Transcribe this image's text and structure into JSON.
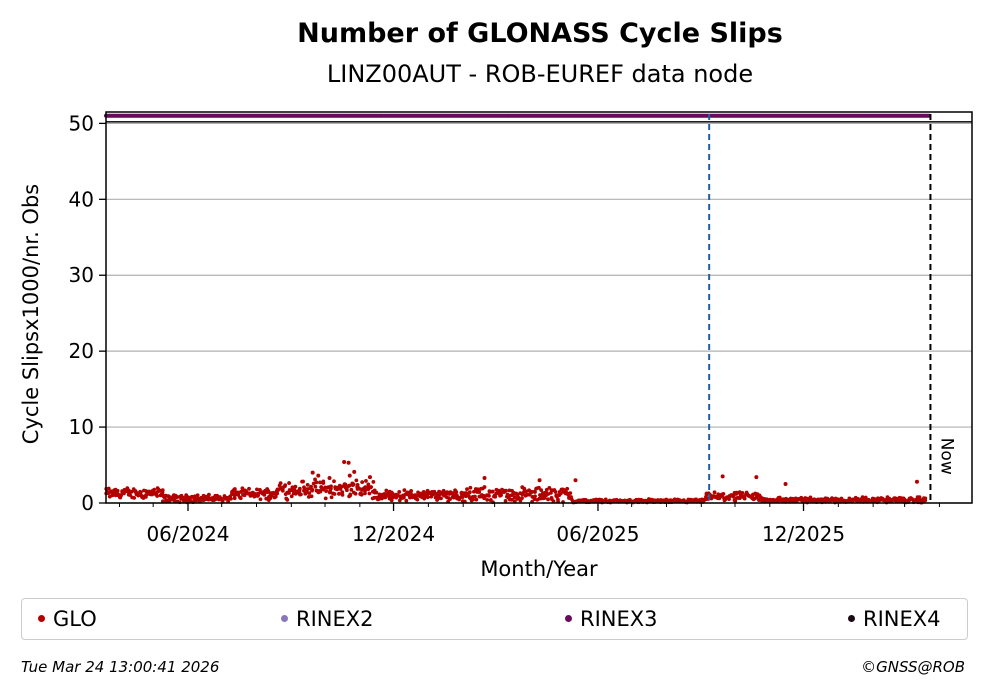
{
  "chart_data": {
    "type": "scatter",
    "title": "Number of GLONASS Cycle Slips",
    "subtitle": "LINZ00AUT - ROB-EUREF data node",
    "xlabel": "Month/Year",
    "ylabel": "Cycle Slipsx1000/nr. Obs",
    "x_range": [
      "2024-03-20",
      "2026-04-30"
    ],
    "ylim": [
      0,
      51.5
    ],
    "y_ticks": [
      0,
      10,
      20,
      30,
      40,
      50
    ],
    "x_ticks": [
      {
        "date": "2024-06-01",
        "label": "06/2024"
      },
      {
        "date": "2024-12-01",
        "label": "12/2024"
      },
      {
        "date": "2025-06-01",
        "label": "06/2025"
      },
      {
        "date": "2025-12-01",
        "label": "12/2025"
      }
    ],
    "grid": "horizontal",
    "markers": [
      {
        "date": "2025-09-08",
        "style": "dashed",
        "color": "#1f5fa0",
        "label": ""
      },
      {
        "date": "2026-03-24",
        "style": "dashed",
        "color": "#000000",
        "label": "Now"
      }
    ],
    "series": [
      {
        "name": "GLO",
        "color": "#b30000",
        "segments": [
          {
            "from": "2024-03-20",
            "to": "2024-05-10",
            "mean": 1.3,
            "spread": 0.6
          },
          {
            "from": "2024-05-10",
            "to": "2024-07-10",
            "mean": 0.6,
            "spread": 0.4
          },
          {
            "from": "2024-07-10",
            "to": "2024-08-20",
            "mean": 1.2,
            "spread": 0.6
          },
          {
            "from": "2024-08-20",
            "to": "2024-11-15",
            "mean": 1.8,
            "spread": 1.0
          },
          {
            "from": "2024-11-15",
            "to": "2025-01-20",
            "mean": 1.0,
            "spread": 0.6
          },
          {
            "from": "2025-01-20",
            "to": "2025-05-10",
            "mean": 1.1,
            "spread": 0.8
          },
          {
            "from": "2025-05-10",
            "to": "2025-09-05",
            "mean": 0.25,
            "spread": 0.2
          },
          {
            "from": "2025-09-05",
            "to": "2025-10-25",
            "mean": 0.8,
            "spread": 0.5
          },
          {
            "from": "2025-10-25",
            "to": "2026-03-20",
            "mean": 0.4,
            "spread": 0.3
          }
        ],
        "highlights": [
          {
            "date": "2024-09-20",
            "value": 4.0
          },
          {
            "date": "2024-09-25",
            "value": 3.6
          },
          {
            "date": "2024-10-05",
            "value": 3.3
          },
          {
            "date": "2024-10-18",
            "value": 5.4
          },
          {
            "date": "2024-10-22",
            "value": 5.3
          },
          {
            "date": "2024-10-23",
            "value": 3.6
          },
          {
            "date": "2024-10-27",
            "value": 4.1
          },
          {
            "date": "2024-11-10",
            "value": 3.4
          },
          {
            "date": "2025-02-20",
            "value": 3.3
          },
          {
            "date": "2025-04-10",
            "value": 3.0
          },
          {
            "date": "2025-05-12",
            "value": 3.0
          },
          {
            "date": "2025-09-20",
            "value": 3.5
          },
          {
            "date": "2025-10-20",
            "value": 3.4
          },
          {
            "date": "2025-11-15",
            "value": 2.5
          },
          {
            "date": "2026-03-12",
            "value": 2.8
          }
        ]
      },
      {
        "name": "RINEX2",
        "color": "#8878bb",
        "values": []
      },
      {
        "name": "RINEX3",
        "color": "#6b0a5c",
        "constant": 51,
        "from": "2024-03-20",
        "to": "2026-03-23"
      },
      {
        "name": "RINEX4",
        "color": "#1a0a14",
        "values": []
      }
    ]
  },
  "legend": [
    {
      "label": "GLO",
      "color": "#b30000"
    },
    {
      "label": "RINEX2",
      "color": "#8878bb"
    },
    {
      "label": "RINEX3",
      "color": "#6b0a5c"
    },
    {
      "label": "RINEX4",
      "color": "#1a0a14"
    }
  ],
  "footer": {
    "timestamp": "Tue Mar 24 13:00:41 2026",
    "credit": "©GNSS@ROB"
  }
}
